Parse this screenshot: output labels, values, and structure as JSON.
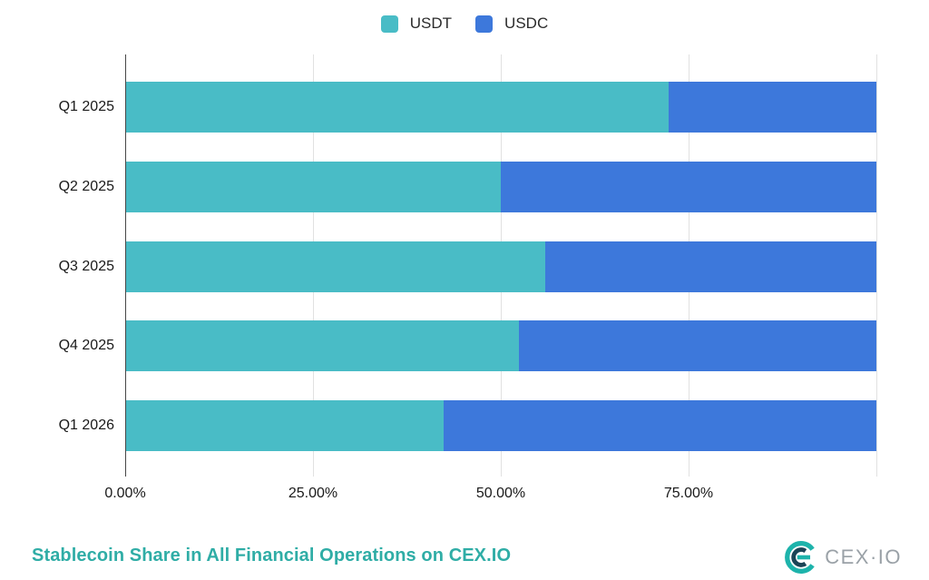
{
  "chart_data": {
    "type": "bar",
    "orientation": "horizontal",
    "stacked": true,
    "title": "Stablecoin Share in All Financial Operations on CEX.IO",
    "categories": [
      "Q1 2025",
      "Q2 2025",
      "Q3 2025",
      "Q4 2025",
      "Q1 2026"
    ],
    "series": [
      {
        "name": "USDT",
        "color": "#49bcc6",
        "values": [
          72.3,
          49.9,
          55.9,
          52.4,
          42.3
        ]
      },
      {
        "name": "USDC",
        "color": "#3d78db",
        "values": [
          27.7,
          50.1,
          44.1,
          47.6,
          57.7
        ]
      }
    ],
    "x_axis": {
      "ticks": [
        "0.00%",
        "25.00%",
        "50.00%",
        "75.00%"
      ],
      "tick_values": [
        0,
        25,
        50,
        75
      ],
      "max": 100,
      "gridlines": [
        25,
        50,
        75,
        100
      ],
      "grid_on": true
    },
    "legend": {
      "position": "top",
      "items": [
        {
          "label": "USDT",
          "color": "#49bcc6"
        },
        {
          "label": "USDC",
          "color": "#3d78db"
        }
      ]
    }
  },
  "footer": {
    "title": "Stablecoin Share in All Financial Operations on CEX.IO",
    "logo_text": "CEX·IO"
  },
  "colors": {
    "usdt": "#49bcc6",
    "usdc": "#3d78db",
    "title_accent": "#2fada6",
    "logo_teal": "#1db3ab",
    "logo_dark": "#1b4456",
    "logo_text_gray": "#9aa1a7",
    "axis": "#474747",
    "gridline": "#e1e1e1"
  }
}
